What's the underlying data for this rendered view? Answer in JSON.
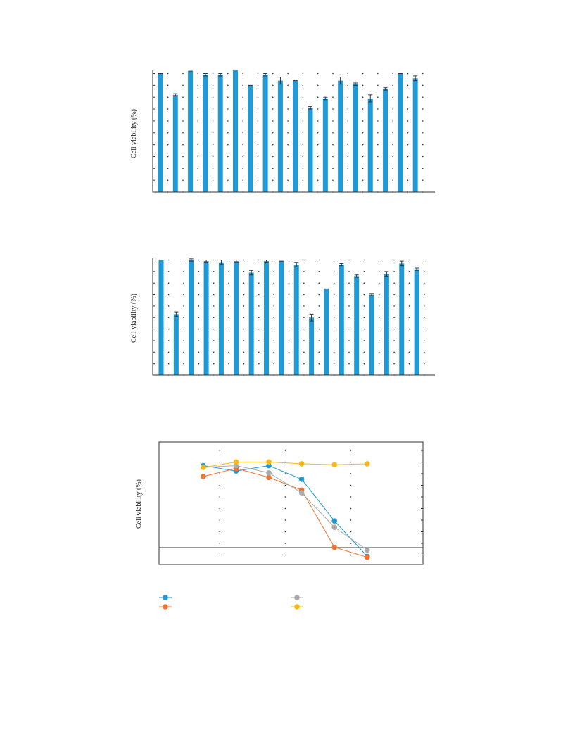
{
  "chart_data": [
    {
      "type": "bar",
      "ylabel": "Cell viability (%)",
      "ylim": [
        0,
        100
      ],
      "grid": "dotted",
      "series": [
        {
          "values": [
            100,
            82,
            102,
            99,
            99,
            103,
            90,
            99,
            94,
            94,
            71,
            79,
            94,
            91,
            79,
            87,
            100,
            96
          ],
          "errors": [
            0,
            1,
            0,
            1,
            1,
            0,
            0,
            1,
            3,
            0,
            1,
            1,
            3,
            1,
            3,
            1,
            0,
            2
          ],
          "color": "#1f9ad6"
        }
      ]
    },
    {
      "type": "bar",
      "ylabel": "Cell viability (%)",
      "ylim": [
        0,
        100
      ],
      "grid": "dotted",
      "series": [
        {
          "values": [
            100,
            53,
            100,
            99,
            98,
            99,
            89,
            99,
            99,
            96,
            50,
            75,
            96,
            86,
            70,
            88,
            97,
            92
          ],
          "errors": [
            0,
            2,
            1,
            1,
            2,
            1,
            2,
            1,
            0,
            2,
            3,
            0,
            1,
            1,
            1,
            2,
            2,
            1
          ],
          "color": "#1f9ad6"
        }
      ]
    },
    {
      "type": "line",
      "ylabel": "Cell viability (%)",
      "x": [
        1,
        2,
        3,
        4,
        5,
        6
      ],
      "xlim": [
        -0.35,
        7.7
      ],
      "ylim": [
        -15,
        120
      ],
      "grid": "dotted",
      "legend": "bottom",
      "series": [
        {
          "color": "#1f9ad6",
          "values": [
            94,
            88,
            94,
            79,
            33,
            -6
          ]
        },
        {
          "color": "#ee7531",
          "values": [
            82,
            91,
            81,
            67,
            4,
            -7
          ]
        },
        {
          "color": "#aaaaaa",
          "values": [
            92,
            94,
            86,
            64,
            26,
            1
          ]
        },
        {
          "color": "#f6b919",
          "values": [
            92,
            98,
            98,
            96,
            95,
            96
          ]
        }
      ]
    }
  ]
}
